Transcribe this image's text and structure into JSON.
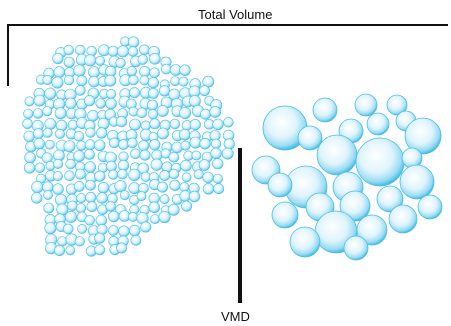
{
  "labels": {
    "top": "Total Volume",
    "bottom": "VMD"
  },
  "colors": {
    "background": "#ffffff",
    "line": "#111111",
    "droplet_fill": "#cdeefa",
    "droplet_center": "#ffffff",
    "droplet_edge": "#49bde6"
  }
}
